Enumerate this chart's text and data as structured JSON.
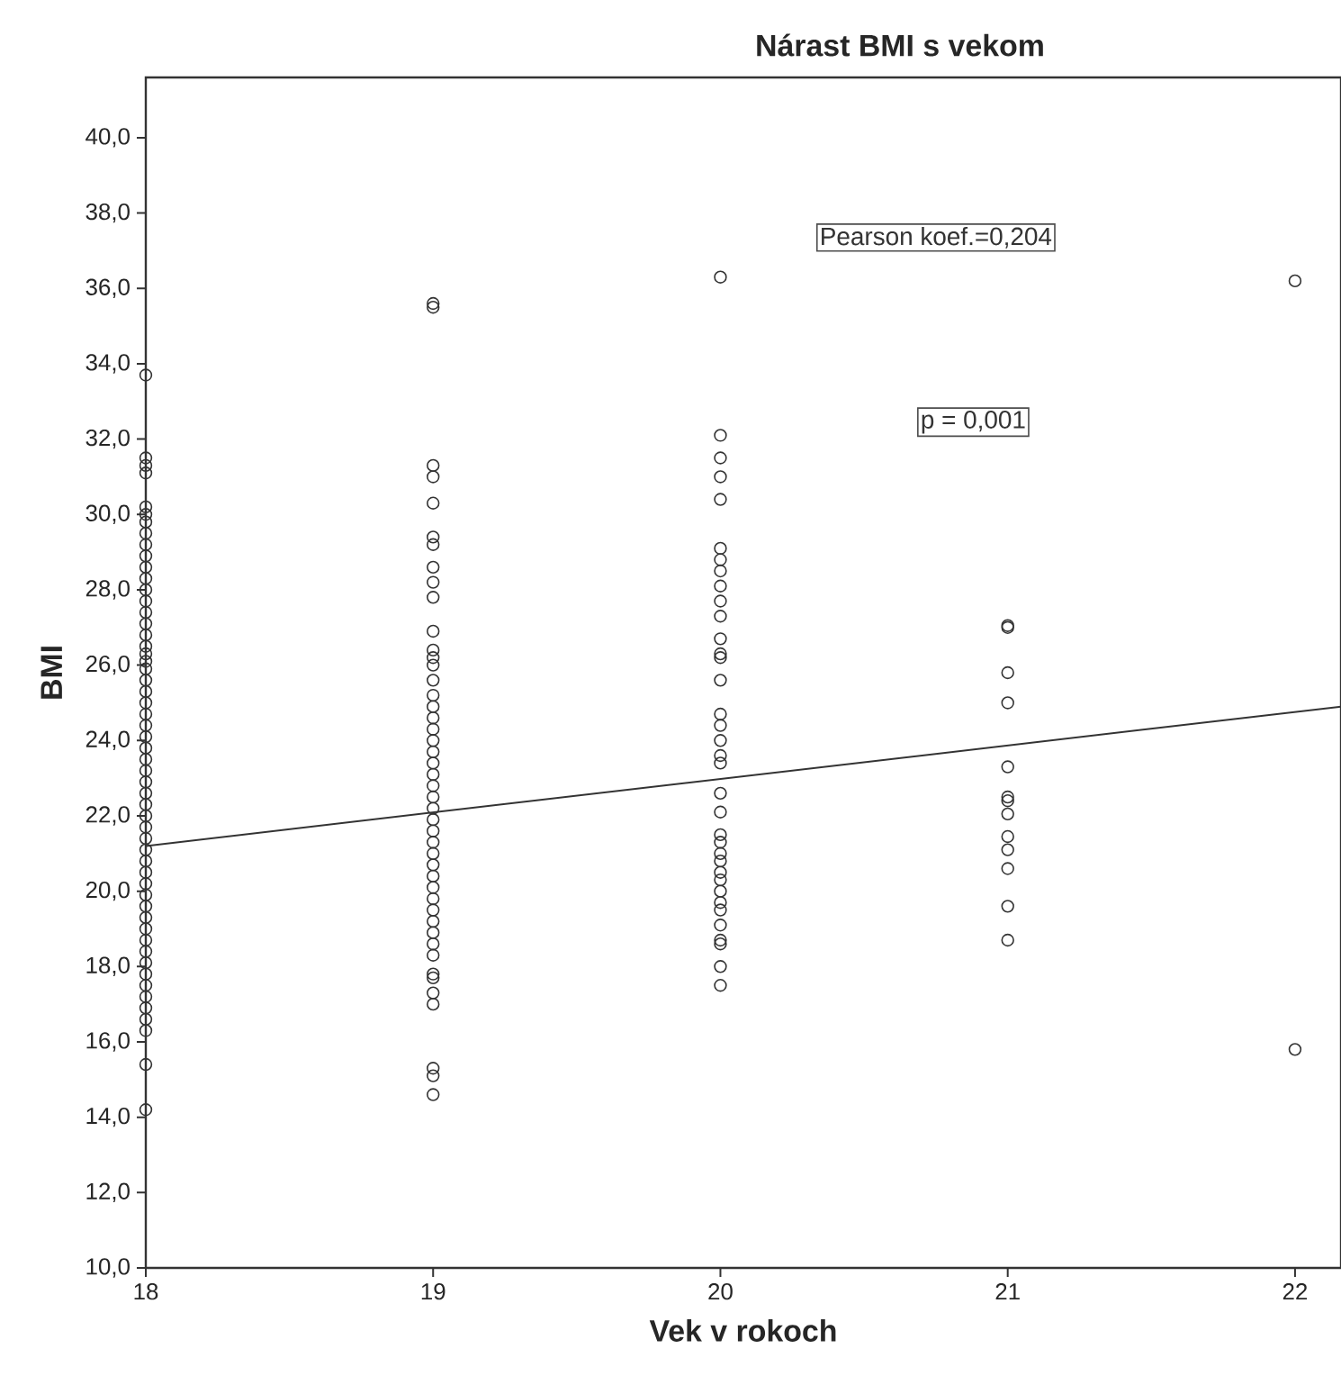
{
  "chart_data": {
    "type": "scatter",
    "title": "Nárast  BMI s vekom",
    "xlabel": "Vek v rokoch",
    "ylabel": "BMI",
    "annotations": [
      "Pearson  koef.=0,204",
      "p = 0,001"
    ],
    "xlim": [
      18,
      22.16
    ],
    "xticks": [
      18,
      19,
      20,
      21,
      22
    ],
    "ylim": [
      10,
      41.6
    ],
    "yticks": [
      {
        "value": 10,
        "label": "10,0"
      },
      {
        "value": 12,
        "label": "12,0"
      },
      {
        "value": 14,
        "label": "14,0"
      },
      {
        "value": 16,
        "label": "16,0"
      },
      {
        "value": 18,
        "label": "18,0"
      },
      {
        "value": 20,
        "label": "20,0"
      },
      {
        "value": 22,
        "label": "22,0"
      },
      {
        "value": 24,
        "label": "24,0"
      },
      {
        "value": 26,
        "label": "26,0"
      },
      {
        "value": 28,
        "label": "28,0"
      },
      {
        "value": 30,
        "label": "30,0"
      },
      {
        "value": 32,
        "label": "32,0"
      },
      {
        "value": 34,
        "label": "34,0"
      },
      {
        "value": 36,
        "label": "36,0"
      },
      {
        "value": 38,
        "label": "38,0"
      },
      {
        "value": 40,
        "label": "40,0"
      }
    ],
    "grid": false,
    "marker": "circle",
    "series": [
      {
        "color": "#333333",
        "x": [
          18,
          18,
          18,
          18,
          18,
          18,
          18,
          18,
          18,
          18,
          18,
          18,
          18,
          18,
          18,
          18,
          18,
          18,
          18,
          18,
          18,
          18,
          18,
          18,
          18,
          18,
          18,
          18,
          18,
          18,
          18,
          18,
          18,
          18,
          18,
          18,
          18,
          18,
          18,
          18,
          18,
          18,
          18,
          18,
          18,
          18,
          18,
          18,
          18,
          18,
          18,
          18,
          18,
          18,
          18,
          19,
          19,
          19,
          19,
          19,
          19,
          19,
          19,
          19,
          19,
          19,
          19,
          19,
          19,
          19,
          19,
          19,
          19,
          19,
          19,
          19,
          19,
          19,
          19,
          19,
          19,
          19,
          19,
          19,
          19,
          19,
          19,
          19,
          19,
          19,
          19,
          19,
          19,
          19,
          19,
          19,
          19,
          19,
          19,
          19,
          19,
          20,
          20,
          20,
          20,
          20,
          20,
          20,
          20,
          20,
          20,
          20,
          20,
          20,
          20,
          20,
          20,
          20,
          20,
          20,
          20,
          20,
          20,
          20,
          20,
          20,
          20,
          20,
          20,
          20,
          20,
          20,
          20,
          20,
          20,
          20,
          20,
          21,
          21,
          21,
          21,
          21,
          21,
          21,
          21,
          21,
          21,
          21,
          21,
          21,
          22,
          22
        ],
        "values": [
          33.7,
          31.5,
          31.3,
          31.1,
          30.2,
          30.0,
          29.8,
          29.5,
          29.2,
          28.9,
          28.6,
          28.3,
          28.0,
          27.7,
          27.4,
          27.1,
          26.8,
          26.5,
          26.3,
          26.1,
          25.9,
          25.6,
          25.3,
          25.0,
          24.7,
          24.4,
          24.1,
          23.8,
          23.5,
          23.2,
          22.9,
          22.6,
          22.3,
          22.0,
          21.7,
          21.4,
          21.1,
          20.8,
          20.5,
          20.2,
          19.9,
          19.6,
          19.3,
          19.0,
          18.7,
          18.4,
          18.1,
          17.8,
          17.5,
          17.2,
          16.9,
          16.6,
          16.3,
          15.4,
          14.2,
          35.5,
          35.6,
          31.3,
          31.0,
          30.3,
          29.4,
          29.2,
          28.6,
          28.2,
          27.8,
          26.9,
          26.4,
          26.2,
          26.0,
          25.6,
          25.2,
          24.9,
          24.6,
          24.3,
          24.0,
          23.7,
          23.4,
          23.1,
          22.8,
          22.5,
          22.2,
          21.9,
          21.6,
          21.3,
          21.0,
          20.7,
          20.4,
          20.1,
          19.8,
          19.5,
          19.2,
          18.9,
          18.6,
          18.3,
          17.8,
          17.7,
          17.3,
          17.0,
          15.3,
          15.1,
          14.6,
          36.3,
          32.1,
          31.5,
          31.0,
          30.4,
          29.1,
          28.8,
          28.5,
          28.1,
          27.7,
          27.3,
          26.7,
          26.3,
          26.2,
          25.6,
          24.7,
          24.4,
          24.0,
          23.6,
          23.4,
          22.6,
          22.1,
          21.5,
          21.3,
          21.0,
          20.8,
          20.5,
          20.3,
          20.0,
          19.7,
          19.5,
          19.1,
          18.7,
          18.6,
          18.0,
          17.5,
          27.05,
          27.0,
          25.8,
          25.0,
          23.3,
          22.5,
          22.4,
          22.05,
          21.45,
          21.1,
          20.6,
          19.6,
          18.7,
          36.2,
          15.8
        ]
      },
      {
        "type": "line",
        "color": "#333333",
        "marker": "none",
        "line_style": "solid",
        "x": [
          18,
          22.16
        ],
        "values": [
          21.2,
          24.9
        ]
      }
    ]
  }
}
